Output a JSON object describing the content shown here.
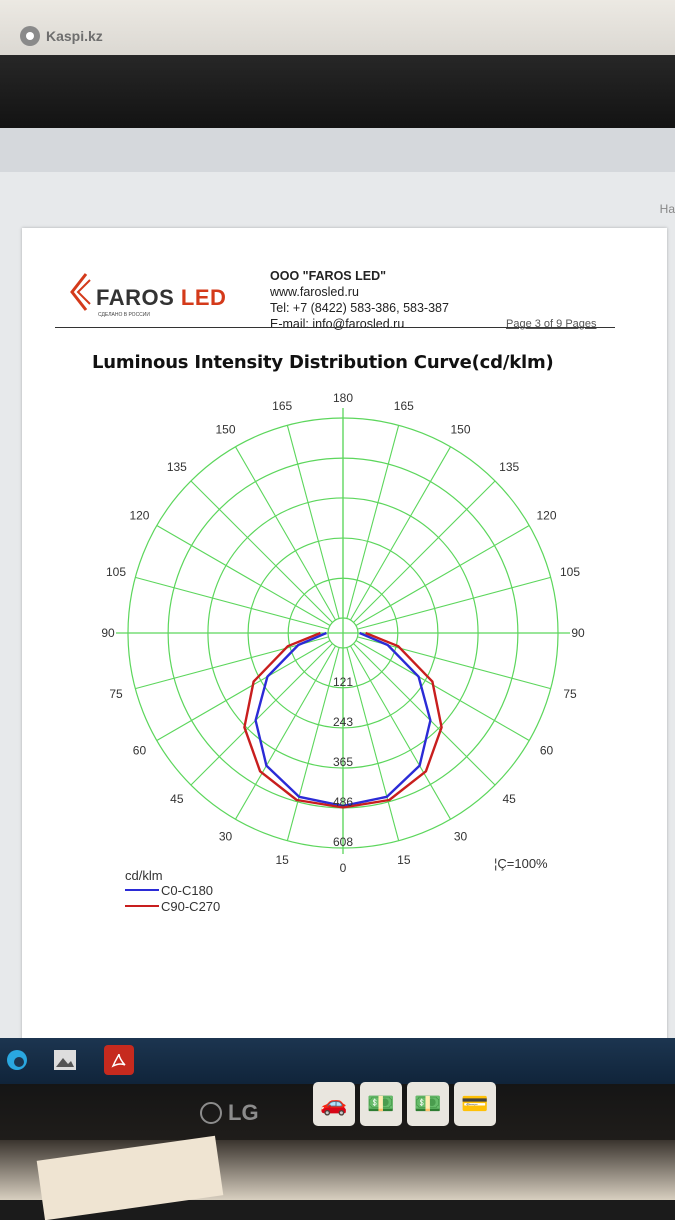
{
  "watermark": {
    "text": "Kaspi.kz"
  },
  "screen": {
    "side_hint": "Ha"
  },
  "document": {
    "logo_text_part1": "FAROS",
    "logo_text_part2": "LED",
    "logo_tagline": "СДЕЛАНО В РОССИИ",
    "company_name": "OOO \"FAROS LED\"",
    "website": "www.farosled.ru",
    "phone": "Tel: +7 (8422) 583-386, 583-387",
    "email": "E-mail: info@farosled.ru",
    "page_info": "Page 3 of 9 Pages",
    "title": "Luminous Intensity Distribution Curve(cd/klm)",
    "eta": "¦Ç=100%"
  },
  "chart_data": {
    "type": "polar",
    "title": "Luminous Intensity Distribution Curve(cd/klm)",
    "unit": "cd/klm",
    "radial_ticks": [
      121,
      243,
      365,
      486,
      608
    ],
    "angle_labels": [
      "0",
      "15",
      "30",
      "45",
      "60",
      "75",
      "90",
      "105",
      "120",
      "135",
      "150",
      "165",
      "180",
      "165",
      "150",
      "135",
      "120",
      "105",
      "90",
      "75",
      "60",
      "45",
      "30",
      "15"
    ],
    "grid": true,
    "legend_position": "bottom-left",
    "series": [
      {
        "name": "C0-C180",
        "color": "#2b2bd6",
        "angles": [
          0,
          15,
          30,
          45,
          60,
          75,
          90
        ],
        "values": [
          480,
          470,
          420,
          330,
          220,
          95,
          5
        ]
      },
      {
        "name": "C90-C270",
        "color": "#c81e1e",
        "angles": [
          0,
          15,
          30,
          45,
          60,
          75,
          90
        ],
        "values": [
          485,
          480,
          440,
          360,
          250,
          110,
          5
        ]
      }
    ]
  },
  "taskbar": {
    "icons": [
      "edge-icon",
      "photos-icon",
      "pdf-icon"
    ]
  },
  "monitor": {
    "brand": "LG"
  }
}
